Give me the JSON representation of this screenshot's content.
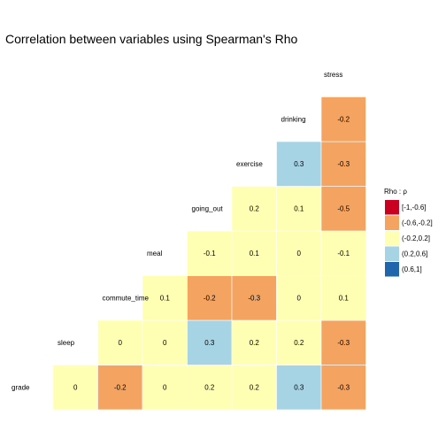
{
  "chart_data": {
    "type": "heatmap",
    "title": "Correlation between variables using Spearman's Rho",
    "variables": [
      "grade",
      "sleep",
      "commute_time",
      "meal",
      "going_out",
      "exercise",
      "drinking",
      "stress"
    ],
    "cells": [
      {
        "row": "grade",
        "col": "grade",
        "value": 0,
        "label": "0"
      },
      {
        "row": "grade",
        "col": "sleep",
        "value": -0.2,
        "label": "-0.2"
      },
      {
        "row": "grade",
        "col": "commute_time",
        "value": 0,
        "label": "0"
      },
      {
        "row": "grade",
        "col": "meal",
        "value": 0.2,
        "label": "0.2"
      },
      {
        "row": "grade",
        "col": "going_out",
        "value": 0.2,
        "label": "0.2"
      },
      {
        "row": "grade",
        "col": "exercise",
        "value": 0.3,
        "label": "0.3"
      },
      {
        "row": "grade",
        "col": "drinking",
        "value": -0.3,
        "label": "-0.3"
      },
      {
        "row": "sleep",
        "col": "sleep",
        "value": 0,
        "label": "0"
      },
      {
        "row": "sleep",
        "col": "commute_time",
        "value": 0,
        "label": "0"
      },
      {
        "row": "sleep",
        "col": "meal",
        "value": 0.3,
        "label": "0.3"
      },
      {
        "row": "sleep",
        "col": "going_out",
        "value": 0.2,
        "label": "0.2"
      },
      {
        "row": "sleep",
        "col": "exercise",
        "value": 0.2,
        "label": "0.2"
      },
      {
        "row": "sleep",
        "col": "drinking",
        "value": -0.3,
        "label": "-0.3"
      },
      {
        "row": "commute_time",
        "col": "commute_time",
        "value": 0.1,
        "label": "0.1"
      },
      {
        "row": "commute_time",
        "col": "meal",
        "value": -0.2,
        "label": "-0.2"
      },
      {
        "row": "commute_time",
        "col": "going_out",
        "value": -0.3,
        "label": "-0.3"
      },
      {
        "row": "commute_time",
        "col": "exercise",
        "value": 0,
        "label": "0"
      },
      {
        "row": "commute_time",
        "col": "drinking",
        "value": 0.1,
        "label": "0.1"
      },
      {
        "row": "meal",
        "col": "meal",
        "value": -0.1,
        "label": "-0.1"
      },
      {
        "row": "meal",
        "col": "going_out",
        "value": 0.1,
        "label": "0.1"
      },
      {
        "row": "meal",
        "col": "exercise",
        "value": 0,
        "label": "0"
      },
      {
        "row": "meal",
        "col": "drinking",
        "value": -0.1,
        "label": "-0.1"
      },
      {
        "row": "going_out",
        "col": "going_out",
        "value": 0.2,
        "label": "0.2"
      },
      {
        "row": "going_out",
        "col": "exercise",
        "value": 0.1,
        "label": "0.1"
      },
      {
        "row": "going_out",
        "col": "drinking",
        "value": -0.5,
        "label": "-0.5"
      },
      {
        "row": "exercise",
        "col": "exercise",
        "value": 0.3,
        "label": "0.3"
      },
      {
        "row": "exercise",
        "col": "drinking",
        "value": -0.3,
        "label": "-0.3"
      },
      {
        "row": "drinking",
        "col": "drinking",
        "value": -0.2,
        "label": "-0.2"
      }
    ],
    "legend": {
      "title": "Rho : ρ",
      "placement": "right",
      "bins": [
        {
          "label": "[-1,-0.6]",
          "color": "#ca0020"
        },
        {
          "label": "(-0.6,-0.2]",
          "color": "#f4a460"
        },
        {
          "label": "(-0.2,0.2]",
          "color": "#ffffb3"
        },
        {
          "label": "(0.2,0.6]",
          "color": "#a6d4e4"
        },
        {
          "label": "(0.6,1]",
          "color": "#2166ac"
        }
      ]
    },
    "grid": false
  }
}
